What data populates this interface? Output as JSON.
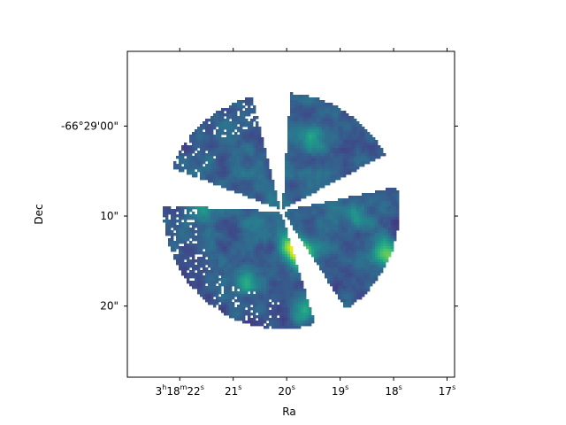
{
  "chart_data": {
    "type": "heatmap",
    "title": "",
    "xlabel": "Ra",
    "ylabel": "Dec",
    "x_ticks": [
      {
        "h": "3",
        "m": "18",
        "s": "22"
      },
      {
        "h": "",
        "m": "",
        "s": "21"
      },
      {
        "h": "",
        "m": "",
        "s": "20"
      },
      {
        "h": "",
        "m": "",
        "s": "19"
      },
      {
        "h": "",
        "m": "",
        "s": "18"
      },
      {
        "h": "",
        "m": "",
        "s": "17"
      }
    ],
    "x_tick_seconds": [
      22,
      21,
      20,
      19,
      18,
      17
    ],
    "x_range_seconds": [
      22.98,
      16.86
    ],
    "y_ticks": [
      {
        "label": "-66°29'00\"",
        "arcsec_offset": 0
      },
      {
        "label": "10\"",
        "arcsec_offset": 10
      },
      {
        "label": "20\"",
        "arcsec_offset": 20
      }
    ],
    "y_range_arcsec": [
      -8.3,
      27.9
    ],
    "disk_center": {
      "ra_s": 20.1,
      "dec_arcsec": 9.4
    },
    "disk_radius_arcsec": 13.1,
    "wedge_gaps_deg": [
      {
        "center": 95,
        "width": 18
      },
      {
        "center": 20,
        "width": 16
      },
      {
        "center": -65,
        "width": 16
      },
      {
        "center": 168,
        "width": 18
      }
    ],
    "colormap": "viridis",
    "grid": false,
    "legend": "none",
    "bright_features": [
      {
        "ra_s": 19.7,
        "dec_arcsec": 14.3,
        "intensity": 0.95
      },
      {
        "ra_s": 19.9,
        "dec_arcsec": 13.4,
        "intensity": 0.8
      },
      {
        "ra_s": 17.9,
        "dec_arcsec": 14.6,
        "intensity": 0.85
      },
      {
        "ra_s": 18.2,
        "dec_arcsec": 13.9,
        "intensity": 0.7
      },
      {
        "ra_s": 21.6,
        "dec_arcsec": 9.1,
        "intensity": 0.6
      },
      {
        "ra_s": 19.7,
        "dec_arcsec": 20.6,
        "intensity": 0.6
      },
      {
        "ra_s": 19.5,
        "dec_arcsec": 1.0,
        "intensity": 0.5
      },
      {
        "ra_s": 20.8,
        "dec_arcsec": 17.5,
        "intensity": 0.45
      },
      {
        "ra_s": 18.7,
        "dec_arcsec": 9.8,
        "intensity": 0.45
      }
    ]
  }
}
